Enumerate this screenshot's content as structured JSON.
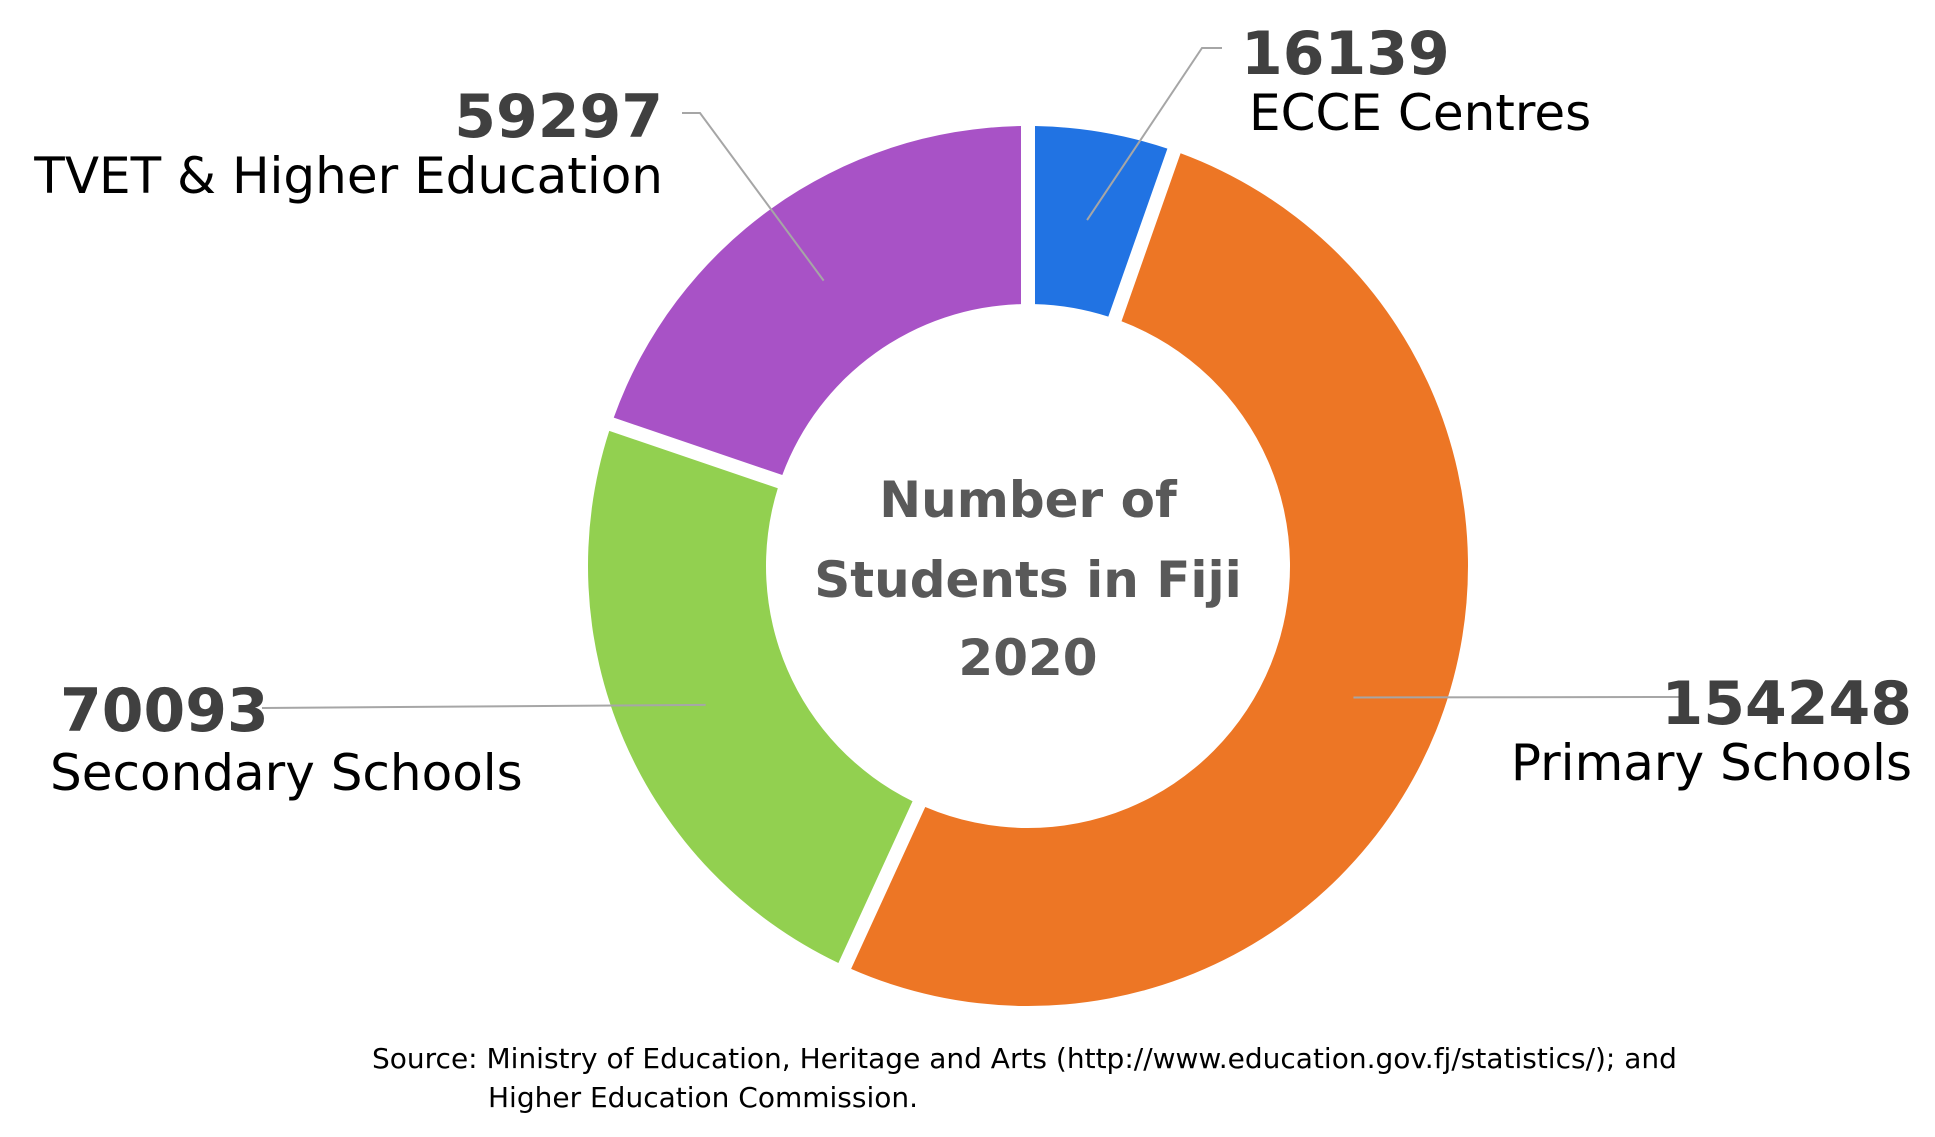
{
  "chart_data": {
    "type": "pie",
    "style": "donut",
    "title_lines": [
      "Number of",
      "Students in Fiji",
      "2020"
    ],
    "slices": [
      {
        "label": "ECCE Centres",
        "value": 16139,
        "value_text": "16139",
        "color": "#2173E3"
      },
      {
        "label": "Primary Schools",
        "value": 154248,
        "value_text": "154248",
        "color": "#ED7625"
      },
      {
        "label": "Secondary Schools",
        "value": 70093,
        "value_text": "70093",
        "color": "#92D050"
      },
      {
        "label": "TVET & Higher Education",
        "value": 59297,
        "value_text": "59297",
        "color": "#A852C6"
      }
    ],
    "source_lines": [
      "Source: Ministry of Education, Heritage and Arts (http://www.education.gov.fj/statistics/); and",
      "Higher Education Commission."
    ]
  }
}
